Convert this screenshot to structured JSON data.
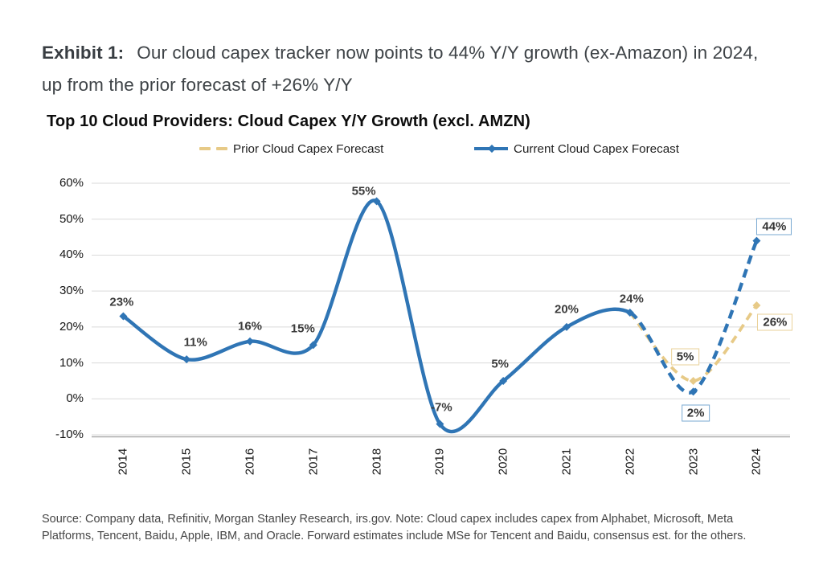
{
  "exhibit": {
    "label": "Exhibit 1:",
    "text": "Our cloud capex tracker now points to 44% Y/Y growth (ex-Amazon) in 2024, up from the prior forecast of +26% Y/Y"
  },
  "chart_data": {
    "type": "line",
    "title": "Top 10 Cloud Providers: Cloud Capex Y/Y Growth (excl. AMZN)",
    "categories": [
      "2014",
      "2015",
      "2016",
      "2017",
      "2018",
      "2019",
      "2020",
      "2021",
      "2022",
      "2023",
      "2024"
    ],
    "series": [
      {
        "name": "Current Cloud Capex Forecast",
        "color": "#2F75B5",
        "values": [
          23,
          11,
          16,
          15,
          55,
          -7,
          5,
          20,
          24,
          2,
          44
        ],
        "labels": [
          "23%",
          "11%",
          "16%",
          "15%",
          "55%",
          "-7%",
          "5%",
          "20%",
          "24%",
          "2%",
          "44%"
        ],
        "line_style": "solid-then-dashed",
        "dashed_from_category": "2022",
        "boxed_label_categories": [
          "2023",
          "2024"
        ]
      },
      {
        "name": "Prior Cloud Capex Forecast",
        "color": "#E7CA87",
        "categories": [
          "2022",
          "2023",
          "2024"
        ],
        "values": [
          24,
          5,
          26
        ],
        "labels": [
          null,
          "5%",
          "26%"
        ],
        "line_style": "dashed",
        "boxed_label_categories": [
          "2023",
          "2024"
        ]
      }
    ],
    "y_ticks": [
      60,
      50,
      40,
      30,
      20,
      10,
      0,
      -10
    ],
    "y_tick_labels": [
      "60%",
      "50%",
      "40%",
      "30%",
      "20%",
      "10%",
      "0%",
      "-10%"
    ],
    "ylim": [
      -10,
      60
    ],
    "grid": "horizontal",
    "legend_position": "top",
    "colors": {
      "gridline": "#DADADA",
      "axis_line": "#ACACAC",
      "box_border_blue": "#79A9D1",
      "box_border_tan": "#EAD299"
    }
  },
  "source_note": "Source: Company data, Refinitiv, Morgan Stanley Research, irs.gov. Note: Cloud capex includes capex from Alphabet, Microsoft, Meta Platforms, Tencent, Baidu, Apple, IBM, and Oracle. Forward estimates include MSe for Tencent and Baidu, consensus est. for the others."
}
